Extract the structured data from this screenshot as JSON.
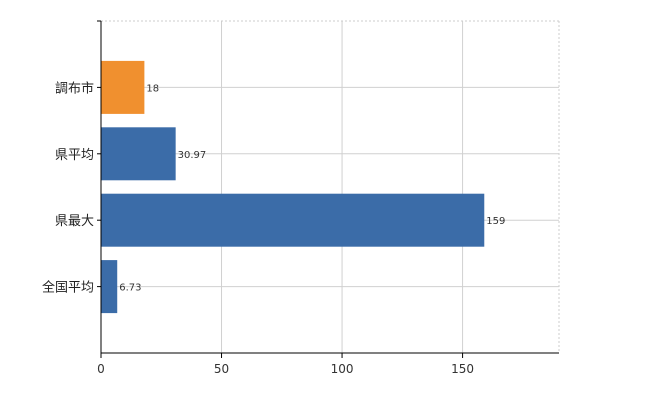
{
  "chart_data": {
    "type": "bar",
    "orientation": "horizontal",
    "categories": [
      "調布市",
      "県平均",
      "県最大",
      "全国平均"
    ],
    "values": [
      18,
      30.97,
      159,
      6.73
    ],
    "value_labels": [
      "18",
      "30.97",
      "159",
      "6.73"
    ],
    "bar_colors": [
      "#f0902f",
      "#3b6ca8",
      "#3b6ca8",
      "#3b6ca8"
    ],
    "xlim": [
      0,
      190
    ],
    "xticks": [
      0,
      50,
      100,
      150
    ],
    "xtick_labels": [
      "0",
      "50",
      "100",
      "150"
    ],
    "grid": true,
    "legend": "none"
  }
}
